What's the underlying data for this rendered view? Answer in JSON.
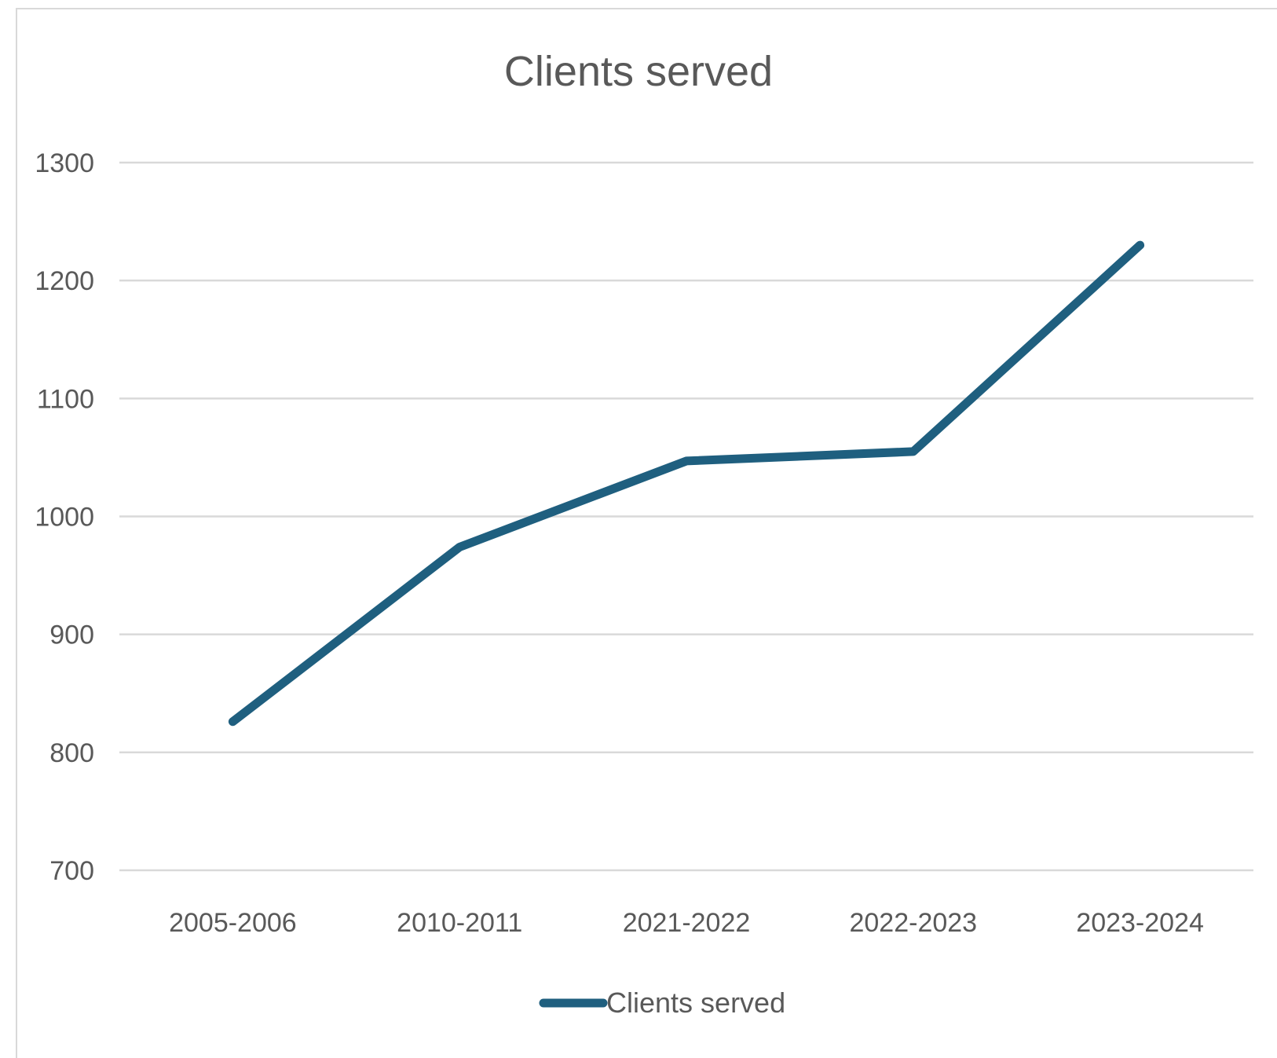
{
  "chart_data": {
    "type": "line",
    "title": "Clients served",
    "xlabel": "",
    "ylabel": "",
    "categories": [
      "2005-2006",
      "2010-2011",
      "2021-2022",
      "2022-2023",
      "2023-2024"
    ],
    "series": [
      {
        "name": "Clients served",
        "color": "#1f5f7f",
        "values": [
          826,
          974,
          1047,
          1055,
          1230
        ]
      }
    ],
    "ylim": [
      700,
      1300
    ],
    "yticks": [
      "700",
      "800",
      "900",
      "1000",
      "1100",
      "1200",
      "1300"
    ],
    "grid": true,
    "legend": "bottom"
  }
}
